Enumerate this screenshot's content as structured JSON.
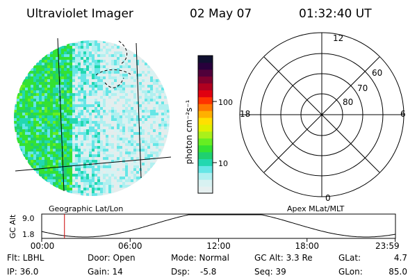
{
  "header": {
    "title": "Ultraviolet Imager",
    "date": "02 May 07",
    "time": "01:32:40 UT"
  },
  "colorbar": {
    "label": "photon cm⁻²s⁻¹",
    "ticks": [
      "100",
      "10"
    ],
    "colors": [
      "#e6f0f0",
      "#d8f2f2",
      "#b0f0f0",
      "#66e6e6",
      "#22d8b0",
      "#1fd070",
      "#33e233",
      "#66ee22",
      "#aaf01a",
      "#e0f000",
      "#ffe000",
      "#ffb000",
      "#ff7700",
      "#ff3300",
      "#e00010",
      "#b00020",
      "#80002e",
      "#50003a",
      "#28003c",
      "#101030"
    ]
  },
  "polar": {
    "top_label": "12",
    "left_label": "18",
    "right_label": "6",
    "bottom_label": "0",
    "lat_labels": [
      "60",
      "70",
      "80"
    ]
  },
  "timeline": {
    "left_label": "Geographic Lat/Lon",
    "right_label": "Apex MLat/MLT",
    "axis_label": "GC Alt",
    "y_ticks": [
      "9.0",
      "1.8"
    ],
    "x_ticks": [
      "00:00",
      "06:00",
      "12:00",
      "18:00",
      "23:59"
    ],
    "marker_time_hours": 1.544
  },
  "status": {
    "flt": "Flt: LBHL",
    "ip": "IP: 36.0",
    "door": "Door: Open",
    "gain": "Gain: 14",
    "mode": "Mode: Normal",
    "dsp_label": "Dsp:",
    "dsp_value": "-5.8",
    "gc_alt": "GC Alt: 3.3 Re",
    "seq": "Seq: 39",
    "glat_label": "GLat:",
    "glat_value": "4.7",
    "glon_label": "GLon:",
    "glon_value": "85.0"
  }
}
